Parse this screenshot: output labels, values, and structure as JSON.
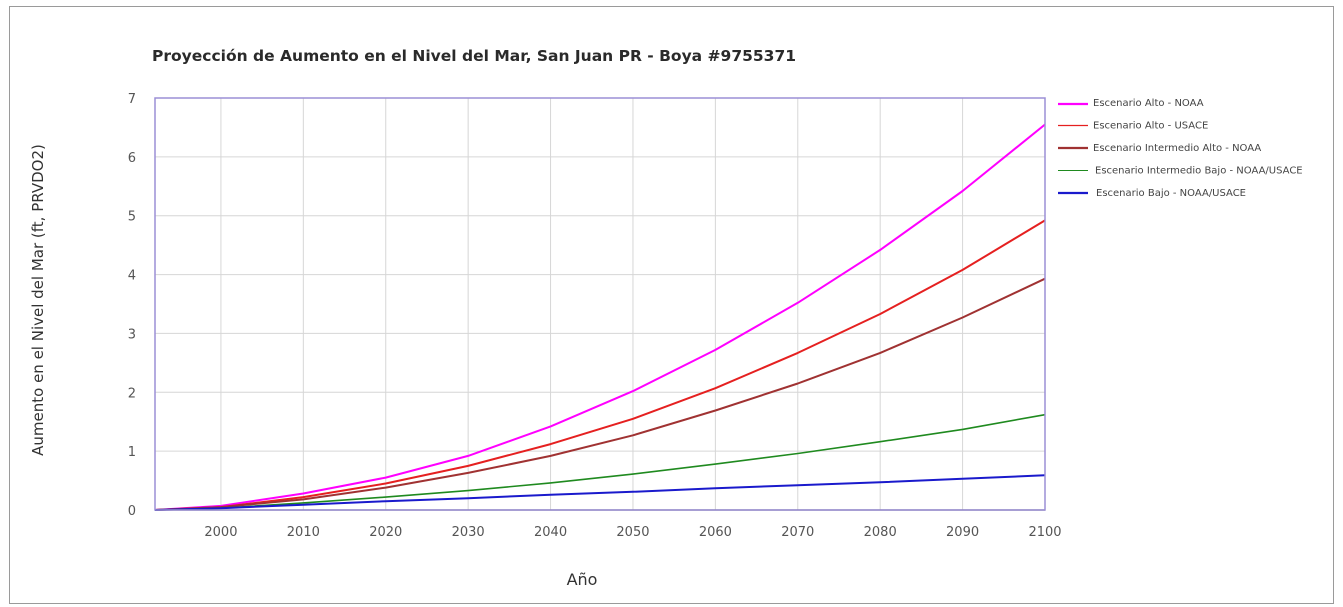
{
  "chart_data": {
    "type": "line",
    "title": "Proyección de Aumento en el Nivel del Mar, San Juan PR - Boya #9755371",
    "xlabel": "Año",
    "ylabel": "Aumento en el Nivel del Mar (ft, PRVDO2)",
    "xlim": [
      1992,
      2100
    ],
    "ylim": [
      0,
      7
    ],
    "xticks": [
      2000,
      2010,
      2020,
      2030,
      2040,
      2050,
      2060,
      2070,
      2080,
      2090,
      2100
    ],
    "yticks": [
      0,
      1,
      2,
      3,
      4,
      5,
      6,
      7
    ],
    "grid": true,
    "legend_position": "right",
    "x": [
      1992,
      2000,
      2010,
      2020,
      2030,
      2040,
      2050,
      2060,
      2070,
      2080,
      2090,
      2100
    ],
    "series": [
      {
        "name": "Escenario Alto - NOAA",
        "color": "#ff00ff",
        "values": [
          0,
          0.07,
          0.28,
          0.55,
          0.92,
          1.42,
          2.02,
          2.72,
          3.52,
          4.42,
          5.42,
          6.55
        ]
      },
      {
        "name": "Escenario Alto - USACE",
        "color": "#e52020",
        "values": [
          0,
          0.05,
          0.22,
          0.45,
          0.75,
          1.12,
          1.55,
          2.07,
          2.67,
          3.33,
          4.08,
          4.92
        ]
      },
      {
        "name": "Escenario Intermedio Alto - NOAA",
        "color": "#a03232",
        "values": [
          0,
          0.05,
          0.18,
          0.38,
          0.63,
          0.92,
          1.27,
          1.69,
          2.15,
          2.67,
          3.27,
          3.93
        ]
      },
      {
        "name": "Escenario Intermedio Bajo - NOAA/USACE",
        "color": "#1f8a1f",
        "values": [
          0,
          0.03,
          0.12,
          0.22,
          0.33,
          0.46,
          0.61,
          0.78,
          0.96,
          1.16,
          1.37,
          1.62
        ]
      },
      {
        "name": "Escenario Bajo - NOAA/USACE",
        "color": "#1a1acc",
        "values": [
          0,
          0.03,
          0.09,
          0.15,
          0.2,
          0.26,
          0.31,
          0.37,
          0.42,
          0.47,
          0.53,
          0.59
        ]
      }
    ]
  }
}
